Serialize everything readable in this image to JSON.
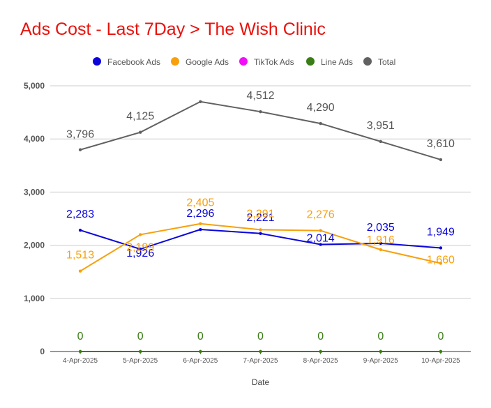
{
  "chart_data": {
    "type": "line",
    "title": "Ads Cost - Last 7Day > The Wish Clinic",
    "xlabel": "Date",
    "ylabel": "",
    "ylim": [
      0,
      5000
    ],
    "yticks": [
      0,
      1000,
      2000,
      3000,
      4000,
      5000
    ],
    "ytick_labels": [
      "0",
      "1,000",
      "2,000",
      "3,000",
      "4,000",
      "5,000"
    ],
    "legend_position": "top-center",
    "categories": [
      "4-Apr-2025",
      "5-Apr-2025",
      "6-Apr-2025",
      "7-Apr-2025",
      "8-Apr-2025",
      "9-Apr-2025",
      "10-Apr-2025"
    ],
    "series": [
      {
        "name": "Facebook Ads",
        "color": "#0b05d9",
        "values": [
          2283,
          1926,
          2296,
          2221,
          2014,
          2035,
          1949
        ],
        "labels": [
          "2,283",
          "1,926",
          "2,296",
          "2,221",
          "2,014",
          "2,035",
          "1,949"
        ]
      },
      {
        "name": "Google Ads",
        "color": "#f7a00c",
        "values": [
          1513,
          2199,
          2405,
          2291,
          2276,
          1916,
          1660
        ],
        "labels": [
          "1,513",
          "2,199",
          "2,405",
          "2,291",
          "2,276",
          "1,916",
          "1,660"
        ]
      },
      {
        "name": "TikTok Ads",
        "color": "#f20ef7",
        "values": [
          0,
          0,
          0,
          0,
          0,
          0,
          0
        ],
        "labels": [
          "",
          "",
          "",
          "",
          "",
          "",
          ""
        ]
      },
      {
        "name": "Line Ads",
        "color": "#3a7d16",
        "values": [
          0,
          0,
          0,
          0,
          0,
          0,
          0
        ],
        "labels": [
          "0",
          "0",
          "0",
          "0",
          "0",
          "0",
          "0"
        ]
      },
      {
        "name": "Total",
        "color": "#616161",
        "values": [
          3796,
          4125,
          4701,
          4512,
          4290,
          3951,
          3610
        ],
        "labels": [
          "3,796",
          "4,125",
          "",
          "4,512",
          "4,290",
          "3,951",
          "3,610"
        ]
      }
    ]
  }
}
